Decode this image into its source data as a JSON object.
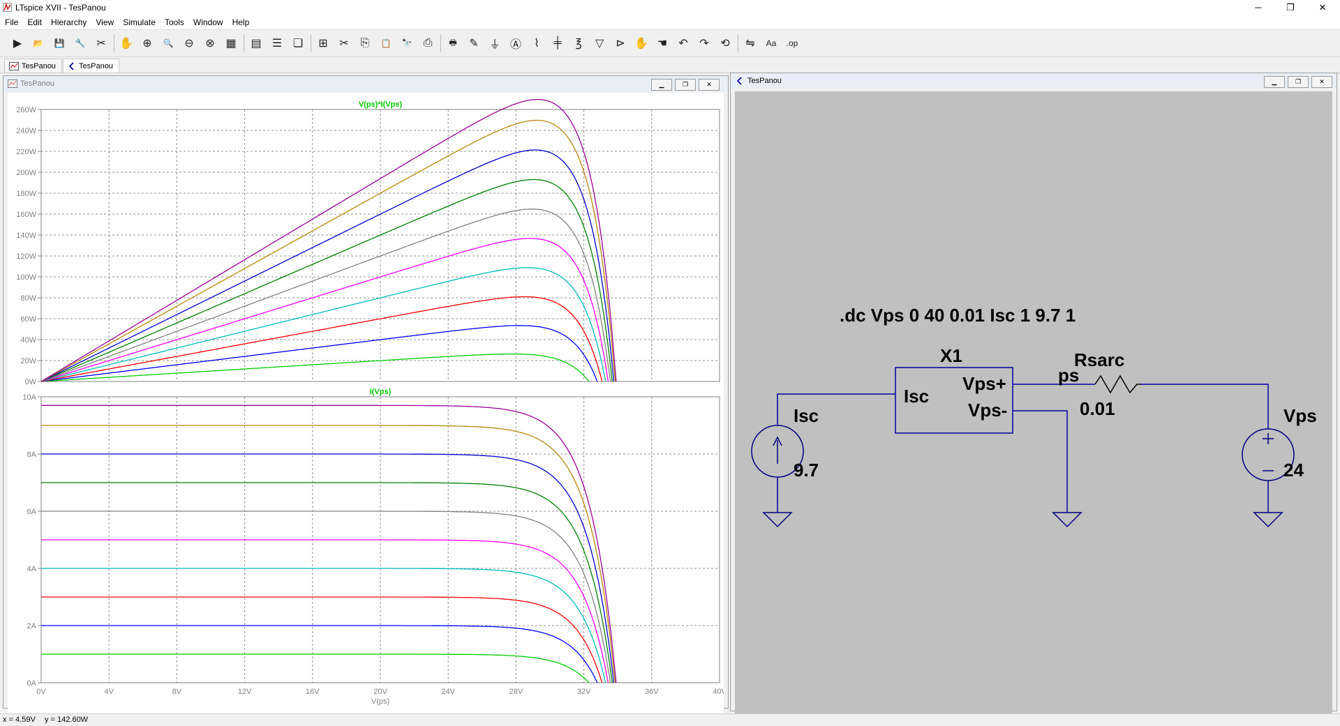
{
  "window": {
    "title": "LTspice XVII - TesPanou",
    "minimize": "─",
    "restore": "❐",
    "close": "✕"
  },
  "menu": [
    "File",
    "Edit",
    "Hierarchy",
    "View",
    "Simulate",
    "Tools",
    "Window",
    "Help"
  ],
  "toolbar": [
    {
      "icon": "run-icon",
      "glyph": "▶"
    },
    {
      "icon": "open-icon",
      "glyph": "📂"
    },
    {
      "icon": "save-icon",
      "glyph": "💾"
    },
    {
      "icon": "control-panel-icon",
      "glyph": "🔧"
    },
    {
      "icon": "halt-icon",
      "glyph": "✂"
    },
    {
      "icon": "pan-icon",
      "glyph": "✋"
    },
    {
      "icon": "zoom-in-icon",
      "glyph": "⊕"
    },
    {
      "icon": "zoom-pan-icon",
      "glyph": "🔍"
    },
    {
      "icon": "zoom-out-icon",
      "glyph": "⊖"
    },
    {
      "icon": "zoom-fit-icon",
      "glyph": "⊗"
    },
    {
      "icon": "autorange-icon",
      "glyph": "▦"
    },
    {
      "icon": "grid-icon",
      "glyph": "▤"
    },
    {
      "icon": "tile-horizontal-icon",
      "glyph": "☰"
    },
    {
      "icon": "cascade-icon",
      "glyph": "❏"
    },
    {
      "icon": "tile-vertical-icon",
      "glyph": "⊞"
    },
    {
      "icon": "cut-icon",
      "glyph": "✂"
    },
    {
      "icon": "copy-icon",
      "glyph": "⎘"
    },
    {
      "icon": "paste-icon",
      "glyph": "📋"
    },
    {
      "icon": "find-icon",
      "glyph": "🔭"
    },
    {
      "icon": "print-icon",
      "glyph": "⎙"
    },
    {
      "icon": "print-preview-icon",
      "glyph": "🖶"
    },
    {
      "icon": "draw-wire-icon",
      "glyph": "✎"
    },
    {
      "icon": "ground-icon",
      "glyph": "⏚"
    },
    {
      "icon": "label-net-icon",
      "glyph": "Ⓐ"
    },
    {
      "icon": "resistor-icon",
      "glyph": "⌇"
    },
    {
      "icon": "capacitor-icon",
      "glyph": "╪"
    },
    {
      "icon": "inductor-icon",
      "glyph": "℥"
    },
    {
      "icon": "diode-icon",
      "glyph": "▽"
    },
    {
      "icon": "component-icon",
      "glyph": "⊳"
    },
    {
      "icon": "move-icon",
      "glyph": "✋"
    },
    {
      "icon": "drag-icon",
      "glyph": "☚"
    },
    {
      "icon": "undo-icon",
      "glyph": "↶"
    },
    {
      "icon": "redo-icon",
      "glyph": "↷"
    },
    {
      "icon": "rotate-icon",
      "glyph": "⟲"
    },
    {
      "icon": "mirror-icon",
      "glyph": "⇋"
    },
    {
      "icon": "text-icon",
      "glyph": "Aa"
    },
    {
      "icon": "spice-directive-icon",
      "glyph": ".op"
    }
  ],
  "tabs": [
    {
      "label": "TesPanou",
      "icon": "waveform-icon"
    },
    {
      "label": "TesPanou",
      "icon": "schematic-icon"
    }
  ],
  "plot_window": {
    "title": "TesPanou"
  },
  "schematic_window": {
    "title": "TesPanou"
  },
  "chart_data": [
    {
      "type": "line",
      "title": "V(ps)*I(Vps)",
      "xlabel": "V(ps)",
      "ylabel": "",
      "xlim": [
        0,
        40
      ],
      "ylim": [
        0,
        260
      ],
      "xticks": [
        "0V",
        "4V",
        "8V",
        "12V",
        "16V",
        "20V",
        "24V",
        "28V",
        "32V",
        "36V",
        "40V"
      ],
      "yticks": [
        "0W",
        "20W",
        "40W",
        "60W",
        "80W",
        "100W",
        "120W",
        "140W",
        "160W",
        "180W",
        "200W",
        "220W",
        "240W",
        "260W"
      ],
      "grid": true,
      "isc_steps": [
        1,
        2,
        3,
        4,
        5,
        6,
        7,
        8,
        9,
        9.7
      ],
      "series_colors": [
        "#00cc00",
        "#0000ff",
        "#ff0000",
        "#00bbbb",
        "#ff00ff",
        "#808080",
        "#008000",
        "#0000cc",
        "#b8860b",
        "#990099"
      ]
    },
    {
      "type": "line",
      "title": "I(Vps)",
      "xlabel": "V(ps)",
      "ylabel": "",
      "xlim": [
        0,
        40
      ],
      "ylim": [
        0,
        10
      ],
      "xticks": [
        "0V",
        "4V",
        "8V",
        "12V",
        "16V",
        "20V",
        "24V",
        "28V",
        "32V",
        "36V",
        "40V"
      ],
      "yticks": [
        "0A",
        "2A",
        "4A",
        "6A",
        "8A",
        "10A"
      ],
      "grid": true,
      "isc_steps": [
        1,
        2,
        3,
        4,
        5,
        6,
        7,
        8,
        9,
        9.7
      ],
      "series_colors": [
        "#00cc00",
        "#0000ff",
        "#ff0000",
        "#00bbbb",
        "#ff00ff",
        "#808080",
        "#008000",
        "#0000cc",
        "#b8860b",
        "#990099"
      ]
    }
  ],
  "schematic": {
    "directive": ".dc Vps 0 40 0.01 Isc 1 9.7 1",
    "block_name": "X1",
    "pin_isc": "Isc",
    "pin_vps_plus": "Vps+",
    "pin_vps_minus": "Vps-",
    "net_label": "ps",
    "resistor_name": "Rsarc",
    "resistor_value": "0.01",
    "isrc_name": "Isc",
    "isrc_value": "9.7",
    "vsrc_name": "Vps",
    "vsrc_value": "24",
    "wire_color": "#0000a0",
    "background": "#c0c0c0"
  },
  "status": {
    "x": "x = 4.59V",
    "y": "y = 142.60W"
  }
}
